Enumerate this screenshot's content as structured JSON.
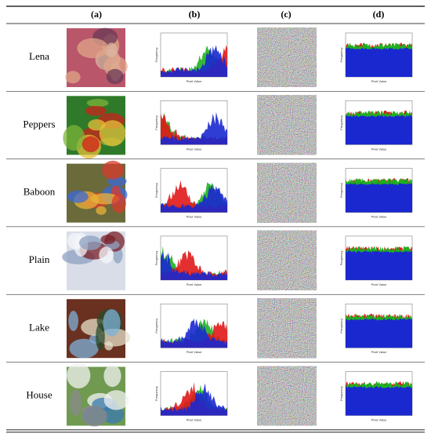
{
  "header": {
    "columns": [
      "(a)",
      "(b)",
      "(c)",
      "(d)"
    ]
  },
  "rows": [
    {
      "name": "Lena"
    },
    {
      "name": "Peppers"
    },
    {
      "name": "Baboon"
    },
    {
      "name": "Plain"
    },
    {
      "name": "Lake"
    },
    {
      "name": "House"
    }
  ],
  "histogram": {
    "y_label": "Frequency",
    "x_label": "Pixel Value"
  }
}
